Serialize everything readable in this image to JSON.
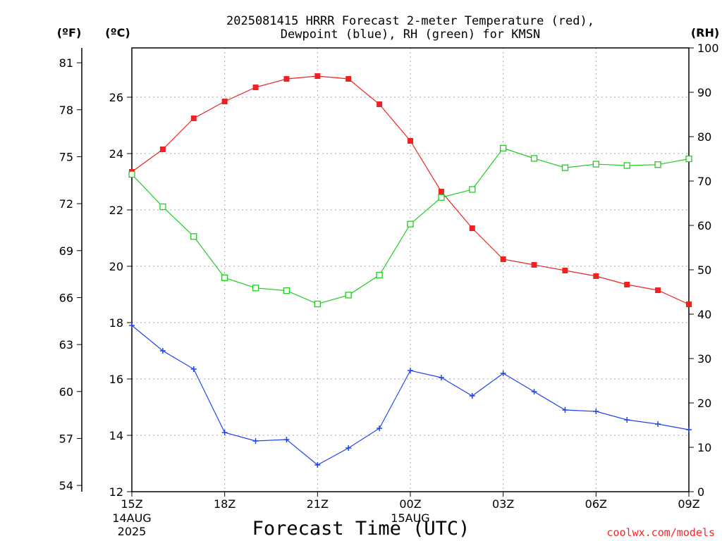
{
  "chart_data": {
    "type": "line",
    "title": [
      "2025081415 HRRR Forecast 2-meter Temperature (red),",
      "Dewpoint (blue), RH (green) for KMSN"
    ],
    "xlabel": "Forecast Time (UTC)",
    "x": [
      "15Z",
      "16Z",
      "17Z",
      "18Z",
      "19Z",
      "20Z",
      "21Z",
      "22Z",
      "23Z",
      "00Z",
      "01Z",
      "02Z",
      "03Z",
      "04Z",
      "05Z",
      "06Z",
      "07Z",
      "08Z",
      "09Z"
    ],
    "x_tick_labels": [
      "15Z",
      "18Z",
      "21Z",
      "00Z",
      "03Z",
      "06Z",
      "09Z"
    ],
    "date_labels": [
      {
        "at": "15Z",
        "lines": [
          "14AUG",
          "2025"
        ]
      },
      {
        "at": "00Z",
        "lines": [
          "15AUG"
        ]
      }
    ],
    "left_unit_label": "(ºF)",
    "left_unit_label_2": "(ºC)",
    "right_unit_label": "(RH)",
    "ylim_c": [
      12,
      27.75
    ],
    "yticks_c": [
      "12",
      "14",
      "16",
      "18",
      "20",
      "22",
      "24",
      "26"
    ],
    "yticks_f": [
      "54",
      "57",
      "60",
      "63",
      "66",
      "69",
      "72",
      "75",
      "78",
      "81"
    ],
    "ylim_rh": [
      0,
      100
    ],
    "yticks_rh": [
      "0",
      "10",
      "20",
      "30",
      "40",
      "50",
      "60",
      "70",
      "80",
      "90",
      "100"
    ],
    "grid": true,
    "series": [
      {
        "color": "#ee2222",
        "marker": "filled-square",
        "axis": "celsius",
        "values": [
          23.35,
          24.15,
          25.25,
          25.85,
          26.35,
          26.65,
          26.75,
          26.65,
          25.75,
          24.45,
          22.65,
          21.35,
          20.25,
          20.05,
          19.85,
          19.65,
          19.35,
          19.15,
          18.65
        ]
      },
      {
        "color": "#2244ee",
        "marker": "plus",
        "axis": "celsius",
        "values": [
          17.9,
          17.0,
          16.35,
          14.1,
          13.8,
          13.85,
          12.95,
          13.55,
          14.25,
          16.3,
          16.05,
          15.4,
          16.2,
          15.55,
          14.9,
          14.85,
          14.55,
          14.4,
          14.2
        ]
      },
      {
        "color": "#22cc22",
        "marker": "open-square",
        "axis": "rh",
        "values": [
          71.5,
          64.2,
          57.5,
          48.2,
          45.9,
          45.3,
          42.3,
          44.3,
          48.8,
          60.3,
          66.3,
          68.1,
          77.4,
          75.1,
          73.0,
          73.8,
          73.5,
          73.7,
          75.0
        ]
      }
    ]
  },
  "credit": "coolwx.com/models"
}
